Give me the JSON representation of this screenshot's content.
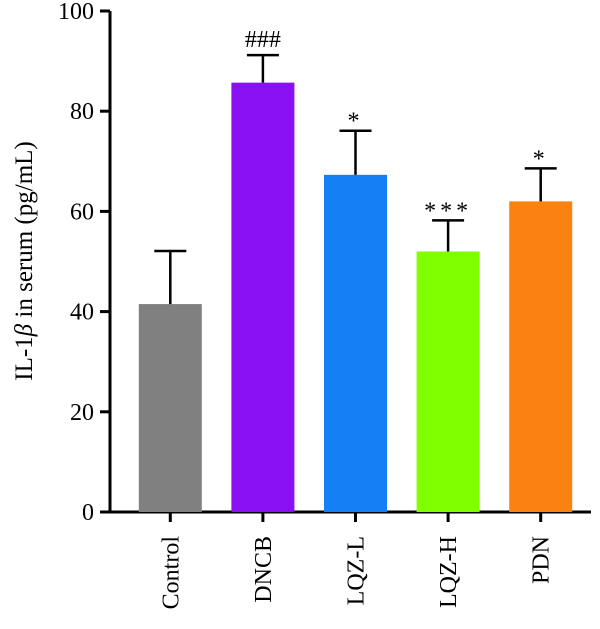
{
  "chart_data": {
    "type": "bar",
    "ylabel_parts": [
      "IL-1",
      "β",
      " in serum (pg/mL)"
    ],
    "ylim": [
      0,
      100
    ],
    "yticks": [
      0,
      20,
      40,
      60,
      80,
      100
    ],
    "categories": [
      "Control",
      "DNCB",
      "LQZ-L",
      "LQZ-H",
      "PDN"
    ],
    "values": [
      41.5,
      85.7,
      67.3,
      52.0,
      62.0
    ],
    "errors": [
      10.6,
      5.5,
      8.8,
      6.2,
      6.6
    ],
    "annotations": [
      "",
      "###",
      "*",
      "***",
      "*"
    ],
    "colors": [
      "#808080",
      "#8a10f4",
      "#1580f5",
      "#80ff00",
      "#fb8110"
    ],
    "grid": false,
    "legend": "none"
  }
}
